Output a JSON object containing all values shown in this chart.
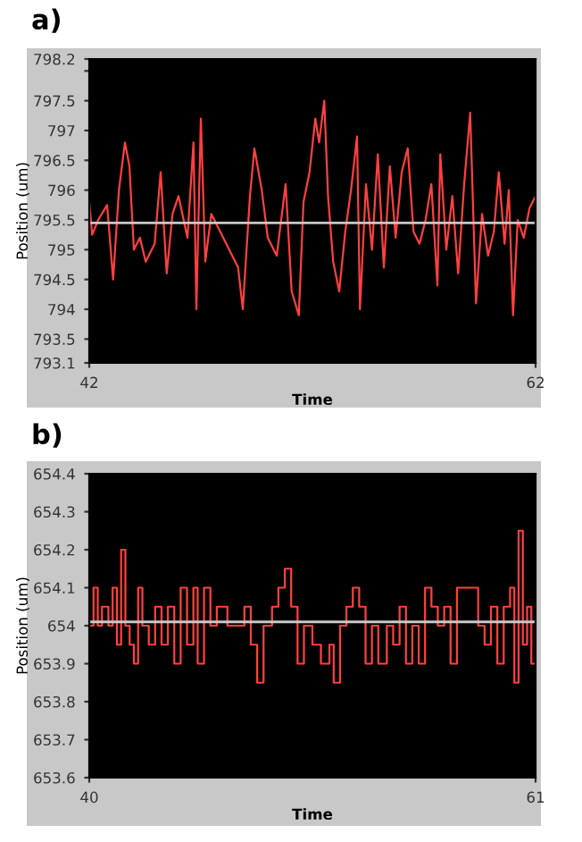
{
  "chart_data": [
    {
      "type": "line",
      "title": "a)",
      "xlabel": "Time",
      "ylabel": "Position (um)",
      "series": [
        {
          "color": "#ff4040",
          "x": [
            42,
            42.13,
            42.4,
            42.8,
            43.07,
            43.33,
            43.6,
            43.8,
            44.0,
            44.27,
            44.53,
            44.93,
            45.2,
            45.47,
            45.73,
            46.0,
            46.4,
            46.67,
            46.8,
            47.0,
            47.2,
            47.47,
            47.87,
            48.27,
            48.67,
            48.88,
            49.2,
            49.4,
            49.73,
            50.0,
            50.4,
            50.8,
            51.07,
            51.39,
            51.6,
            51.87,
            52.13,
            52.3,
            52.53,
            52.7,
            52.93,
            53.2,
            53.47,
            53.73,
            54.0,
            54.13,
            54.4,
            54.67,
            54.93,
            55.2,
            55.47,
            55.73,
            56.0,
            56.27,
            56.53,
            56.8,
            57.07,
            57.33,
            57.6,
            57.73,
            58.0,
            58.27,
            58.53,
            58.8,
            59.07,
            59.33,
            59.6,
            59.87,
            60.13,
            60.35,
            60.61,
            60.8,
            60.99,
            61.2,
            61.47,
            61.73,
            62.0
          ],
          "values": [
            795.8,
            795.25,
            795.5,
            795.75,
            794.5,
            796.0,
            796.8,
            796.4,
            795.0,
            795.2,
            794.8,
            795.1,
            796.3,
            794.6,
            795.6,
            795.9,
            795.2,
            796.8,
            794.0,
            797.2,
            794.8,
            795.6,
            795.3,
            795.0,
            794.7,
            794.0,
            795.9,
            796.7,
            796.0,
            795.2,
            794.9,
            796.1,
            794.3,
            793.9,
            795.8,
            796.3,
            797.2,
            796.8,
            797.5,
            795.9,
            794.8,
            794.3,
            795.3,
            796.0,
            796.9,
            794.0,
            796.1,
            795.0,
            796.6,
            794.7,
            796.4,
            795.2,
            796.3,
            796.7,
            795.3,
            795.1,
            795.5,
            796.1,
            794.4,
            796.6,
            795.0,
            795.9,
            794.6,
            796.1,
            797.3,
            794.1,
            795.6,
            794.9,
            795.3,
            796.3,
            795.1,
            796.0,
            793.9,
            795.5,
            795.2,
            795.7,
            795.9
          ]
        }
      ],
      "ref_lines": [
        {
          "axis": "y",
          "value": 795.45,
          "color": "#c8c8c8"
        }
      ],
      "xlim": [
        42,
        62
      ],
      "xticks": [
        42,
        62
      ],
      "ylim": [
        793.1,
        798.2
      ],
      "yticks": [
        793.1,
        793.5,
        794,
        794.5,
        795,
        795.5,
        796,
        796.5,
        797,
        797.5,
        {
          "value": 798,
          "label": null
        },
        798.2
      ],
      "grid": false,
      "legend": false
    },
    {
      "type": "step",
      "title": "b)",
      "xlabel": "Time",
      "ylabel": "Position (um)",
      "series": [
        {
          "color": "#ff4040",
          "x": [
            40.0,
            40.2,
            40.4,
            40.6,
            40.9,
            41.1,
            41.3,
            41.5,
            41.7,
            41.9,
            42.1,
            42.3,
            42.5,
            42.8,
            43.1,
            43.4,
            43.7,
            44.0,
            44.3,
            44.6,
            44.9,
            45.1,
            45.4,
            45.7,
            46.0,
            46.5,
            47.0,
            47.3,
            47.6,
            47.9,
            48.2,
            48.6,
            48.9,
            49.2,
            49.5,
            49.8,
            50.1,
            50.5,
            50.9,
            51.3,
            51.5,
            51.8,
            52.1,
            52.4,
            52.7,
            53.0,
            53.3,
            53.6,
            54.0,
            54.3,
            54.6,
            54.9,
            55.2,
            55.5,
            55.8,
            56.1,
            56.4,
            56.7,
            57.0,
            57.3,
            58.0,
            58.3,
            58.6,
            58.9,
            59.2,
            59.5,
            59.8,
            60.0,
            60.2,
            60.4,
            60.6,
            60.8,
            61.0
          ],
          "values": [
            654.0,
            654.1,
            654.0,
            654.05,
            654.0,
            654.1,
            653.95,
            654.2,
            654.0,
            653.95,
            653.9,
            654.1,
            654.0,
            653.95,
            654.05,
            653.95,
            654.05,
            653.9,
            654.1,
            653.95,
            654.1,
            653.9,
            654.1,
            654.0,
            654.05,
            654.0,
            654.0,
            654.05,
            653.95,
            653.85,
            654.0,
            654.05,
            654.1,
            654.15,
            654.05,
            653.9,
            654.0,
            653.95,
            653.9,
            653.95,
            653.85,
            654.0,
            654.05,
            654.1,
            654.05,
            653.9,
            654.0,
            653.9,
            654.0,
            653.95,
            654.05,
            653.9,
            654.0,
            653.9,
            654.1,
            654.05,
            654.0,
            654.05,
            653.9,
            654.1,
            654.1,
            654.0,
            653.95,
            654.05,
            653.9,
            654.05,
            654.1,
            653.85,
            654.25,
            653.95,
            654.05,
            653.9,
            654.0
          ]
        }
      ],
      "ref_lines": [
        {
          "axis": "y",
          "value": 654.01,
          "color": "#c8c8c8"
        }
      ],
      "xlim": [
        40,
        61
      ],
      "xticks": [
        40,
        61
      ],
      "ylim": [
        653.6,
        654.4
      ],
      "yticks": [
        653.6,
        653.7,
        653.8,
        653.9,
        654,
        654.1,
        654.2,
        654.3,
        654.4
      ],
      "grid": false,
      "legend": false
    }
  ]
}
